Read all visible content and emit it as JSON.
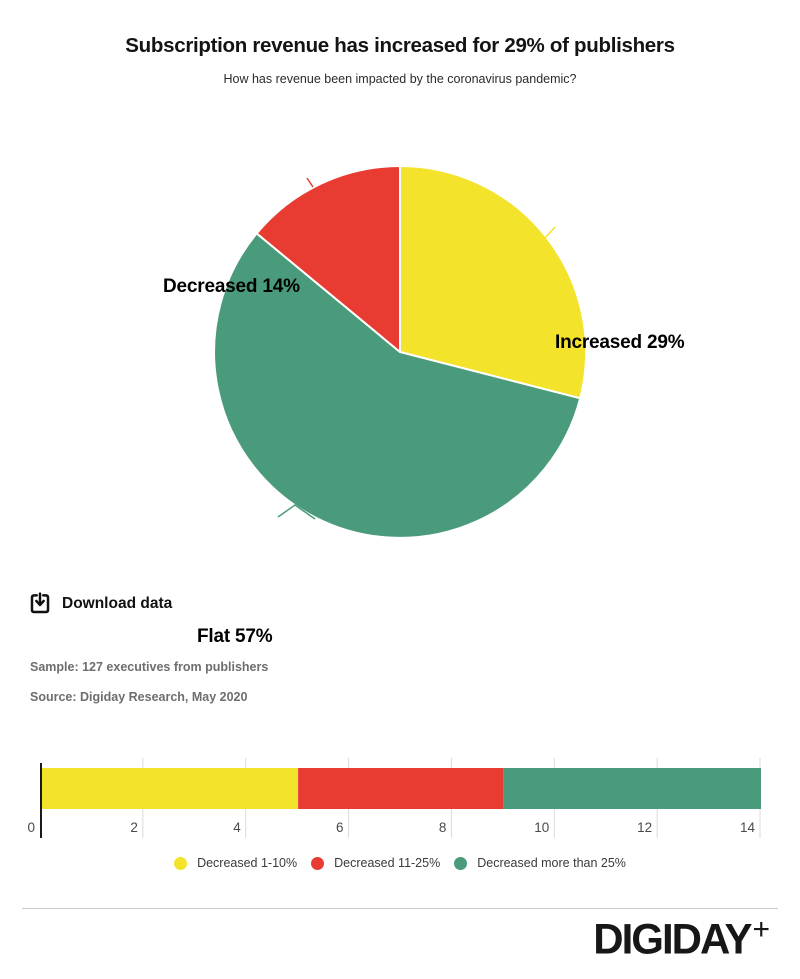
{
  "header": {
    "title": "Subscription revenue has increased for 29% of publishers",
    "subtitle": "How has revenue been impacted by the coronavirus pandemic?"
  },
  "chart_data": [
    {
      "type": "pie",
      "title": "Subscription revenue has increased for 29% of publishers",
      "start_angle": "12 o'clock",
      "direction": "clockwise",
      "slices": [
        {
          "label": "Increased",
          "display": "Increased 29%",
          "value": 29,
          "color": "#F4E32B"
        },
        {
          "label": "Flat",
          "display": "Flat 57%",
          "value": 57,
          "color": "#4A9B7B"
        },
        {
          "label": "Decreased",
          "display": "Decreased 14%",
          "value": 14,
          "color": "#E83B31"
        }
      ]
    },
    {
      "type": "bar",
      "subtype": "horizontal-stacked",
      "series": [
        {
          "name": "Decreased 1-10%",
          "value": 5,
          "color": "#F4E32B"
        },
        {
          "name": "Decreased 11-25%",
          "value": 4,
          "color": "#E83B31"
        },
        {
          "name": "Decreased more than 25%",
          "value": 5,
          "color": "#4A9B7B"
        }
      ],
      "xlim": [
        0,
        14
      ],
      "ticks": [
        0,
        2,
        4,
        6,
        8,
        10,
        12,
        14
      ],
      "grid": true,
      "legend_position": "bottom"
    }
  ],
  "toolbar": {
    "download_label": "Download data"
  },
  "notes": {
    "sample": "Sample: 127 executives from publishers",
    "source": "Source: Digiday Research, May 2020"
  },
  "footer": {
    "brand": "DIGIDAY",
    "brand_plus": "+"
  },
  "colors": {
    "yellow": "#F4E32B",
    "red": "#E83B31",
    "green": "#4A9B7B",
    "grid": "#dcdcdc",
    "axis": "#1a1a1a",
    "tick_label": "#4a4a4a"
  }
}
